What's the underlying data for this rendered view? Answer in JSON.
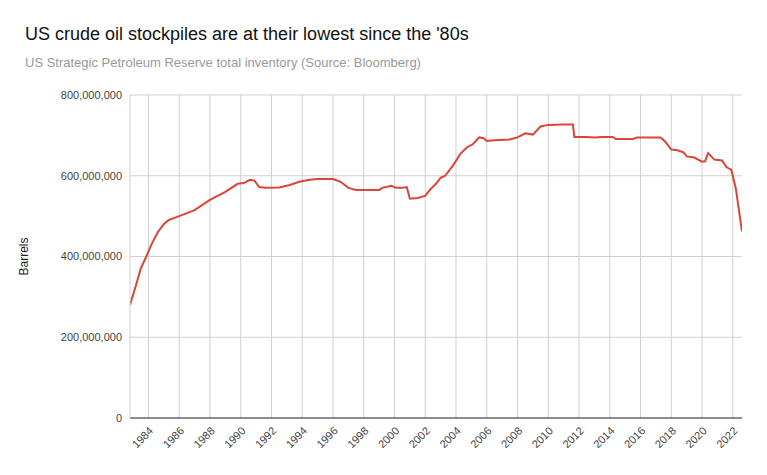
{
  "chart_data": {
    "type": "line",
    "title": "US crude oil stockpiles are at their lowest since the '80s",
    "subtitle": "US Strategic Petroleum Reserve total inventory (Source: Bloomberg)",
    "y_label": "Barrels",
    "color": "#db4437",
    "grid": true,
    "x": [
      1982.8,
      1983.2,
      1983.5,
      1983.8,
      1984.2,
      1984.6,
      1985.0,
      1985.3,
      1986.0,
      1987.0,
      1988.0,
      1989.0,
      1989.8,
      1990.2,
      1990.6,
      1990.9,
      1991.2,
      1991.6,
      1992.5,
      1993.2,
      1993.8,
      1994.5,
      1995.0,
      1996.0,
      1996.5,
      1997.0,
      1997.5,
      1998.0,
      1999.0,
      1999.2,
      1999.8,
      2000.1,
      2000.5,
      2000.8,
      2001.0,
      2001.5,
      2002.0,
      2002.3,
      2002.7,
      2003.0,
      2003.3,
      2003.8,
      2004.3,
      2004.7,
      2005.1,
      2005.5,
      2005.8,
      2006.0,
      2006.5,
      2007.5,
      2008.0,
      2008.5,
      2009.0,
      2009.5,
      2010.0,
      2011.0,
      2011.6,
      2011.7,
      2012.5,
      2013.0,
      2013.5,
      2014.2,
      2014.4,
      2015.5,
      2015.8,
      2016.0,
      2017.3,
      2017.6,
      2018.0,
      2018.4,
      2018.8,
      2019.0,
      2019.5,
      2020.0,
      2020.2,
      2020.4,
      2020.8,
      2021.3,
      2021.6,
      2021.9,
      2022.2,
      2022.6
    ],
    "values": [
      280000000,
      330000000,
      370000000,
      395000000,
      430000000,
      460000000,
      480000000,
      490000000,
      500000000,
      515000000,
      540000000,
      560000000,
      580000000,
      582000000,
      590000000,
      588000000,
      572000000,
      570000000,
      571000000,
      577000000,
      585000000,
      590000000,
      592000000,
      592000000,
      585000000,
      570000000,
      565000000,
      565000000,
      565000000,
      570000000,
      575000000,
      570000000,
      570000000,
      572000000,
      543000000,
      545000000,
      550000000,
      565000000,
      580000000,
      595000000,
      600000000,
      625000000,
      655000000,
      670000000,
      678000000,
      695000000,
      693000000,
      686000000,
      688000000,
      690000000,
      695000000,
      705000000,
      702000000,
      722000000,
      726000000,
      727000000,
      727000000,
      696000000,
      696000000,
      695000000,
      696000000,
      696000000,
      691000000,
      691000000,
      695000000,
      695000000,
      695000000,
      685000000,
      665000000,
      663000000,
      658000000,
      648000000,
      645000000,
      635000000,
      636000000,
      656000000,
      640000000,
      638000000,
      621000000,
      615000000,
      568000000,
      462000000
    ],
    "xlim": [
      1982.8,
      2022.6
    ],
    "xticks": [
      1984,
      1986,
      1988,
      1990,
      1992,
      1994,
      1996,
      1998,
      2000,
      2002,
      2004,
      2006,
      2008,
      2010,
      2012,
      2014,
      2016,
      2018,
      2020,
      2022
    ],
    "ylim": [
      0,
      800000000
    ],
    "yticks": [
      0,
      {
        "value": 200000000,
        "label": "200,000,000"
      },
      {
        "value": 400000000,
        "label": "400,000,000"
      },
      {
        "value": 600000000,
        "label": "600,000,000"
      },
      {
        "value": 800000000,
        "label": "800,000,000"
      }
    ]
  }
}
